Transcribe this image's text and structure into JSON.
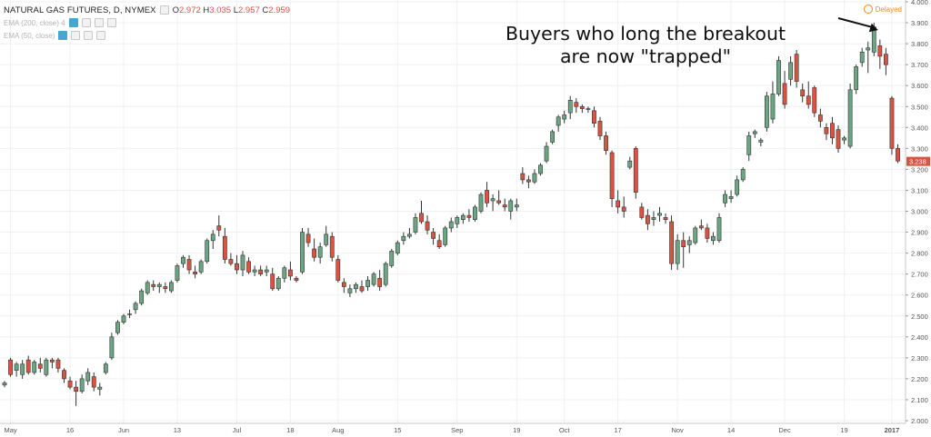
{
  "legend": {
    "symbol_title": "NATURAL GAS FUTURES, D, NYMEX",
    "ohlc": {
      "o_label": "O",
      "o": "2.972",
      "h_label": "H",
      "h": "3.035",
      "l_label": "L",
      "l": "2.957",
      "c_label": "C",
      "c": "2.959"
    },
    "studies": [
      {
        "label": "EMA (200, close) 4"
      },
      {
        "label": "EMA (50, close)"
      }
    ]
  },
  "status": {
    "delayed": "Delayed"
  },
  "annotation": {
    "line1": "Buyers who long the breakout",
    "line2": "are now \"trapped\""
  },
  "colors": {
    "up": "#6ba583",
    "down": "#d75442",
    "grid": "#eef1f4",
    "axis": "#555555",
    "price_tag": "#d75442",
    "arrow": "#111111"
  },
  "chart_data": {
    "type": "candlestick",
    "title": "NATURAL GAS FUTURES, D, NYMEX",
    "ylim": [
      2.0,
      4.0
    ],
    "y_ticks": [
      "4.000",
      "3.900",
      "3.800",
      "3.700",
      "3.600",
      "3.500",
      "3.400",
      "3.300",
      "3.200",
      "3.100",
      "3.000",
      "2.900",
      "2.800",
      "2.700",
      "2.600",
      "2.500",
      "2.400",
      "2.300",
      "2.200",
      "2.100",
      "2.000"
    ],
    "x_ticks": [
      {
        "label": "May",
        "i": 1
      },
      {
        "label": "16",
        "i": 11
      },
      {
        "label": "Jun",
        "i": 20
      },
      {
        "label": "13",
        "i": 29
      },
      {
        "label": "Jul",
        "i": 39
      },
      {
        "label": "18",
        "i": 48
      },
      {
        "label": "Aug",
        "i": 56
      },
      {
        "label": "15",
        "i": 66
      },
      {
        "label": "Sep",
        "i": 76
      },
      {
        "label": "19",
        "i": 86
      },
      {
        "label": "Oct",
        "i": 94
      },
      {
        "label": "17",
        "i": 103
      },
      {
        "label": "Nov",
        "i": 113
      },
      {
        "label": "14",
        "i": 122
      },
      {
        "label": "Dec",
        "i": 131
      },
      {
        "label": "19",
        "i": 141
      },
      {
        "label": "2017",
        "i": 149
      }
    ],
    "last_price": "3.238",
    "candles": [
      [
        2.17,
        2.19,
        2.16,
        2.18
      ],
      [
        2.29,
        2.3,
        2.21,
        2.22
      ],
      [
        2.24,
        2.28,
        2.21,
        2.27
      ],
      [
        2.22,
        2.29,
        2.2,
        2.27
      ],
      [
        2.29,
        2.31,
        2.22,
        2.23
      ],
      [
        2.23,
        2.29,
        2.22,
        2.28
      ],
      [
        2.27,
        2.3,
        2.23,
        2.25
      ],
      [
        2.22,
        2.3,
        2.21,
        2.29
      ],
      [
        2.29,
        2.3,
        2.25,
        2.28
      ],
      [
        2.29,
        2.3,
        2.23,
        2.25
      ],
      [
        2.24,
        2.25,
        2.18,
        2.2
      ],
      [
        2.19,
        2.21,
        2.15,
        2.16
      ],
      [
        2.16,
        2.19,
        2.07,
        2.14
      ],
      [
        2.14,
        2.22,
        2.13,
        2.2
      ],
      [
        2.19,
        2.25,
        2.17,
        2.23
      ],
      [
        2.21,
        2.23,
        2.14,
        2.16
      ],
      [
        2.15,
        2.18,
        2.12,
        2.16
      ],
      [
        2.23,
        2.28,
        2.22,
        2.27
      ],
      [
        2.3,
        2.42,
        2.29,
        2.4
      ],
      [
        2.42,
        2.48,
        2.41,
        2.47
      ],
      [
        2.47,
        2.51,
        2.46,
        2.5
      ],
      [
        2.51,
        2.53,
        2.49,
        2.51
      ],
      [
        2.53,
        2.57,
        2.51,
        2.56
      ],
      [
        2.56,
        2.63,
        2.55,
        2.62
      ],
      [
        2.61,
        2.67,
        2.6,
        2.66
      ],
      [
        2.65,
        2.67,
        2.62,
        2.64
      ],
      [
        2.64,
        2.66,
        2.61,
        2.65
      ],
      [
        2.64,
        2.66,
        2.61,
        2.63
      ],
      [
        2.62,
        2.67,
        2.61,
        2.66
      ],
      [
        2.67,
        2.75,
        2.66,
        2.74
      ],
      [
        2.75,
        2.79,
        2.73,
        2.78
      ],
      [
        2.77,
        2.79,
        2.7,
        2.72
      ],
      [
        2.71,
        2.74,
        2.68,
        2.7
      ],
      [
        2.71,
        2.77,
        2.7,
        2.76
      ],
      [
        2.76,
        2.87,
        2.75,
        2.86
      ],
      [
        2.86,
        2.91,
        2.82,
        2.89
      ],
      [
        2.93,
        2.98,
        2.88,
        2.91
      ],
      [
        2.88,
        2.92,
        2.75,
        2.77
      ],
      [
        2.77,
        2.8,
        2.74,
        2.75
      ],
      [
        2.75,
        2.79,
        2.7,
        2.72
      ],
      [
        2.72,
        2.81,
        2.69,
        2.79
      ],
      [
        2.76,
        2.78,
        2.7,
        2.71
      ],
      [
        2.71,
        2.74,
        2.69,
        2.72
      ],
      [
        2.72,
        2.74,
        2.69,
        2.7
      ],
      [
        2.71,
        2.74,
        2.69,
        2.72
      ],
      [
        2.7,
        2.73,
        2.62,
        2.63
      ],
      [
        2.63,
        2.69,
        2.62,
        2.68
      ],
      [
        2.68,
        2.74,
        2.66,
        2.73
      ],
      [
        2.72,
        2.76,
        2.67,
        2.69
      ],
      [
        2.68,
        2.69,
        2.66,
        2.67
      ],
      [
        2.71,
        2.92,
        2.7,
        2.9
      ],
      [
        2.89,
        2.92,
        2.83,
        2.85
      ],
      [
        2.82,
        2.87,
        2.76,
        2.78
      ],
      [
        2.78,
        2.85,
        2.75,
        2.83
      ],
      [
        2.84,
        2.93,
        2.83,
        2.89
      ],
      [
        2.88,
        2.9,
        2.76,
        2.78
      ],
      [
        2.77,
        2.79,
        2.66,
        2.67
      ],
      [
        2.66,
        2.68,
        2.61,
        2.64
      ],
      [
        2.61,
        2.65,
        2.59,
        2.63
      ],
      [
        2.63,
        2.66,
        2.61,
        2.65
      ],
      [
        2.64,
        2.67,
        2.61,
        2.62
      ],
      [
        2.64,
        2.69,
        2.62,
        2.67
      ],
      [
        2.65,
        2.71,
        2.64,
        2.7
      ],
      [
        2.68,
        2.72,
        2.62,
        2.64
      ],
      [
        2.65,
        2.76,
        2.64,
        2.75
      ],
      [
        2.74,
        2.82,
        2.73,
        2.81
      ],
      [
        2.8,
        2.86,
        2.79,
        2.85
      ],
      [
        2.86,
        2.9,
        2.84,
        2.88
      ],
      [
        2.88,
        2.92,
        2.87,
        2.89
      ],
      [
        2.9,
        2.99,
        2.89,
        2.97
      ],
      [
        2.99,
        3.05,
        2.94,
        2.95
      ],
      [
        2.95,
        2.98,
        2.89,
        2.91
      ],
      [
        2.9,
        2.92,
        2.84,
        2.87
      ],
      [
        2.86,
        2.89,
        2.82,
        2.83
      ],
      [
        2.84,
        2.93,
        2.83,
        2.92
      ],
      [
        2.92,
        2.97,
        2.9,
        2.95
      ],
      [
        2.94,
        2.98,
        2.92,
        2.97
      ],
      [
        2.96,
        2.99,
        2.94,
        2.98
      ],
      [
        2.98,
        3.01,
        2.95,
        2.97
      ],
      [
        2.96,
        3.03,
        2.95,
        3.02
      ],
      [
        3.0,
        3.09,
        2.99,
        3.08
      ],
      [
        3.1,
        3.14,
        3.02,
        3.04
      ],
      [
        3.05,
        3.08,
        3.0,
        3.06
      ],
      [
        3.05,
        3.1,
        3.03,
        3.04
      ],
      [
        3.03,
        3.06,
        3.0,
        3.02
      ],
      [
        3.0,
        3.06,
        2.96,
        3.05
      ],
      [
        3.02,
        3.06,
        3.0,
        3.03
      ],
      [
        3.18,
        3.21,
        3.13,
        3.15
      ],
      [
        3.15,
        3.17,
        3.11,
        3.14
      ],
      [
        3.14,
        3.2,
        3.13,
        3.18
      ],
      [
        3.18,
        3.23,
        3.17,
        3.22
      ],
      [
        3.24,
        3.33,
        3.23,
        3.31
      ],
      [
        3.33,
        3.39,
        3.32,
        3.38
      ],
      [
        3.41,
        3.46,
        3.38,
        3.45
      ],
      [
        3.44,
        3.48,
        3.42,
        3.46
      ],
      [
        3.47,
        3.55,
        3.44,
        3.53
      ],
      [
        3.52,
        3.54,
        3.47,
        3.5
      ],
      [
        3.5,
        3.51,
        3.47,
        3.49
      ],
      [
        3.49,
        3.5,
        3.47,
        3.49
      ],
      [
        3.48,
        3.5,
        3.4,
        3.42
      ],
      [
        3.43,
        3.45,
        3.34,
        3.36
      ],
      [
        3.36,
        3.38,
        3.27,
        3.29
      ],
      [
        3.28,
        3.29,
        3.02,
        3.06
      ],
      [
        3.05,
        3.1,
        2.99,
        3.02
      ],
      [
        3.02,
        3.07,
        2.97,
        3.0
      ],
      [
        3.21,
        3.26,
        3.2,
        3.24
      ],
      [
        3.3,
        3.31,
        3.06,
        3.09
      ],
      [
        3.02,
        3.04,
        2.96,
        2.97
      ],
      [
        2.98,
        3.01,
        2.91,
        2.94
      ],
      [
        2.96,
        3.0,
        2.93,
        2.97
      ],
      [
        2.98,
        3.02,
        2.95,
        2.99
      ],
      [
        2.97,
        2.99,
        2.94,
        2.96
      ],
      [
        2.95,
        2.98,
        2.72,
        2.75
      ],
      [
        2.75,
        2.89,
        2.72,
        2.86
      ],
      [
        2.86,
        2.9,
        2.73,
        2.83
      ],
      [
        2.84,
        2.88,
        2.8,
        2.86
      ],
      [
        2.85,
        2.93,
        2.84,
        2.92
      ],
      [
        2.93,
        2.96,
        2.91,
        2.92
      ],
      [
        2.92,
        2.94,
        2.85,
        2.87
      ],
      [
        2.86,
        2.9,
        2.84,
        2.88
      ],
      [
        2.86,
        2.99,
        2.85,
        2.97
      ],
      [
        3.04,
        3.1,
        3.02,
        3.08
      ],
      [
        3.06,
        3.1,
        3.04,
        3.07
      ],
      [
        3.08,
        3.17,
        3.07,
        3.15
      ],
      [
        3.15,
        3.21,
        3.14,
        3.2
      ],
      [
        3.27,
        3.38,
        3.24,
        3.36
      ],
      [
        3.37,
        3.39,
        3.35,
        3.38
      ],
      [
        3.33,
        3.35,
        3.31,
        3.34
      ],
      [
        3.4,
        3.57,
        3.38,
        3.55
      ],
      [
        3.44,
        3.62,
        3.42,
        3.56
      ],
      [
        3.56,
        3.74,
        3.55,
        3.72
      ],
      [
        3.61,
        3.67,
        3.49,
        3.51
      ],
      [
        3.63,
        3.74,
        3.6,
        3.71
      ],
      [
        3.75,
        3.77,
        3.59,
        3.62
      ],
      [
        3.58,
        3.61,
        3.52,
        3.55
      ],
      [
        3.55,
        3.62,
        3.49,
        3.51
      ],
      [
        3.59,
        3.6,
        3.45,
        3.47
      ],
      [
        3.46,
        3.49,
        3.4,
        3.43
      ],
      [
        3.4,
        3.42,
        3.34,
        3.37
      ],
      [
        3.42,
        3.45,
        3.32,
        3.35
      ],
      [
        3.39,
        3.41,
        3.28,
        3.3
      ],
      [
        3.34,
        3.36,
        3.32,
        3.35
      ],
      [
        3.31,
        3.61,
        3.3,
        3.58
      ],
      [
        3.58,
        3.7,
        3.56,
        3.69
      ],
      [
        3.71,
        3.78,
        3.69,
        3.76
      ],
      [
        3.77,
        3.81,
        3.66,
        3.78
      ],
      [
        3.76,
        3.9,
        3.74,
        3.88
      ],
      [
        3.79,
        3.82,
        3.68,
        3.74
      ],
      [
        3.75,
        3.78,
        3.65,
        3.7
      ],
      [
        3.54,
        3.55,
        3.27,
        3.3
      ],
      [
        3.3,
        3.32,
        3.23,
        3.24
      ]
    ]
  }
}
